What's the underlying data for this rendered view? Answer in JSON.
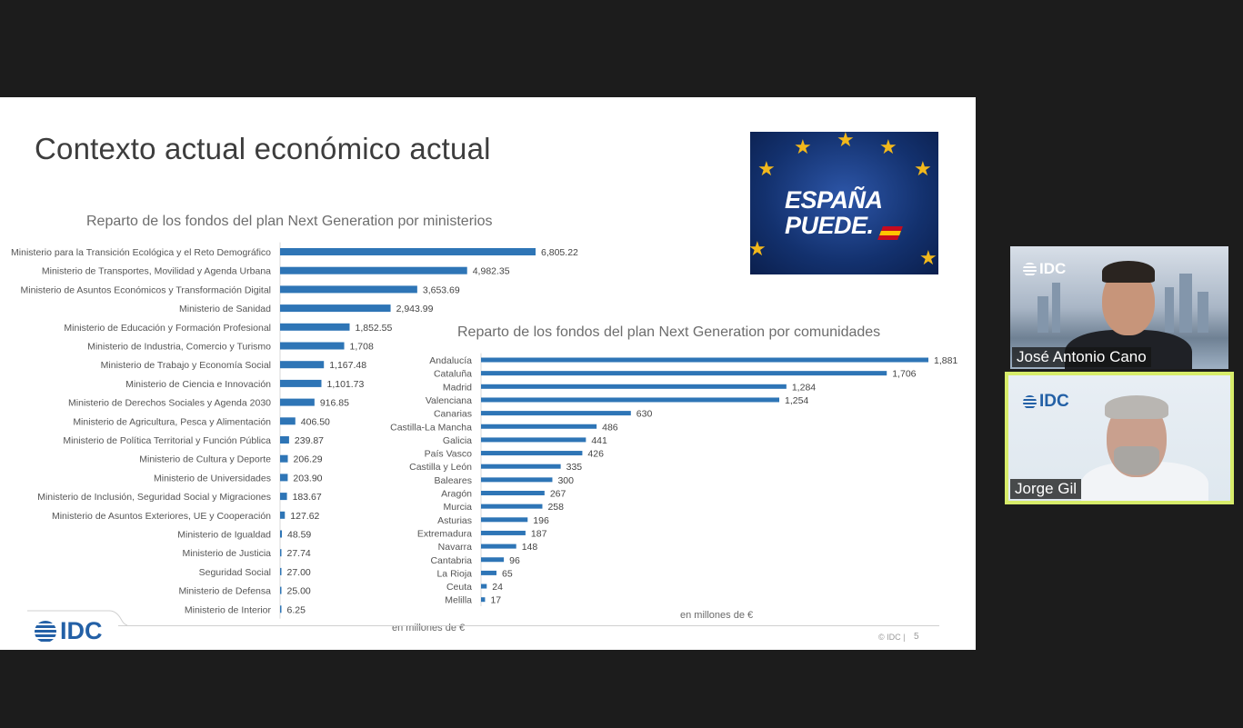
{
  "slide": {
    "title": "Contexto actual económico actual",
    "banner": {
      "line1": "ESPAÑA",
      "line2": "PUEDE."
    },
    "logo": "IDC",
    "copyright": "© IDC |",
    "page_number": "5"
  },
  "videos": [
    {
      "name": "José Antonio Cano",
      "logo": "IDC"
    },
    {
      "name": "Jorge Gil",
      "logo": "IDC"
    }
  ],
  "colors": {
    "bar": "#2e75b6",
    "idc_blue": "#2360a6",
    "active_speaker": "#d7ec6a"
  },
  "chart_data": [
    {
      "type": "bar",
      "orientation": "horizontal",
      "title": "Reparto de los fondos del plan Next Generation por ministerios",
      "unit_label": "en millones de €",
      "categories": [
        "Ministerio para la Transición Ecológica y el Reto Demográfico",
        "Ministerio de Transportes, Movilidad y Agenda Urbana",
        "Ministerio de Asuntos Económicos y Transformación Digital",
        "Ministerio de Sanidad",
        "Ministerio de Educación y Formación Profesional",
        "Ministerio de Industria, Comercio y Turismo",
        "Ministerio de Trabajo y Economía Social",
        "Ministerio de Ciencia e Innovación",
        "Ministerio de Derechos Sociales y Agenda 2030",
        "Ministerio de Agricultura, Pesca y Alimentación",
        "Ministerio de Política Territorial y Función Pública",
        "Ministerio de Cultura y Deporte",
        "Ministerio de Universidades",
        "Ministerio de Inclusión, Seguridad Social y Migraciones",
        "Ministerio de Asuntos Exteriores, UE y Cooperación",
        "Ministerio de Igualdad",
        "Ministerio de Justicia",
        "Seguridad Social",
        "Ministerio de Defensa",
        "Ministerio de Interior"
      ],
      "values": [
        6805.22,
        4982.35,
        3653.69,
        2943.99,
        1852.55,
        1708,
        1167.48,
        1101.73,
        916.85,
        406.5,
        239.87,
        206.29,
        203.9,
        183.67,
        127.62,
        48.59,
        27.74,
        27.0,
        25.0,
        6.25
      ],
      "labels": [
        "6,805.22",
        "4,982.35",
        "3,653.69",
        "2,943.99",
        "1,852.55",
        "1,708",
        "1,167.48",
        "1,101.73",
        "916.85",
        "406.50",
        "239.87",
        "206.29",
        "203.90",
        "183.67",
        "127.62",
        "48.59",
        "27.74",
        "27.00",
        "25.00",
        "6.25"
      ]
    },
    {
      "type": "bar",
      "orientation": "horizontal",
      "title": "Reparto de los fondos del plan Next Generation por comunidades",
      "unit_label": "en millones de €",
      "categories": [
        "Andalucía",
        "Cataluña",
        "Madrid",
        "Valenciana",
        "Canarias",
        "Castilla-La Mancha",
        "Galicia",
        "País Vasco",
        "Castilla y León",
        "Baleares",
        "Aragón",
        "Murcia",
        "Asturias",
        "Extremadura",
        "Navarra",
        "Cantabria",
        "La Rioja",
        "Ceuta",
        "Melilla"
      ],
      "values": [
        1881,
        1706,
        1284,
        1254,
        630,
        486,
        441,
        426,
        335,
        300,
        267,
        258,
        196,
        187,
        148,
        96,
        65,
        24,
        17
      ],
      "labels": [
        "1,881",
        "1,706",
        "1,284",
        "1,254",
        "630",
        "486",
        "441",
        "426",
        "335",
        "300",
        "267",
        "258",
        "196",
        "187",
        "148",
        "96",
        "65",
        "24",
        "17"
      ]
    }
  ]
}
